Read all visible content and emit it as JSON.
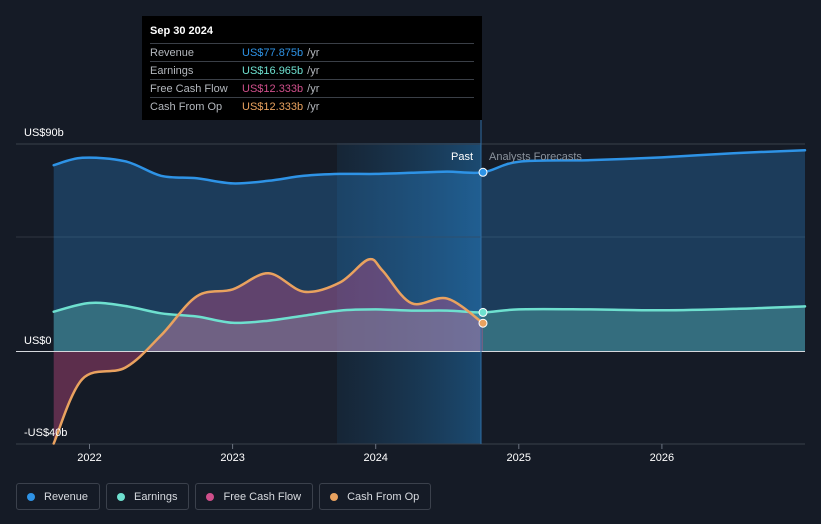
{
  "tooltip": {
    "date": "Sep 30 2024",
    "rows": [
      {
        "label": "Revenue",
        "value": "US$77.875b",
        "unit": "/yr",
        "color": "#2e93e6"
      },
      {
        "label": "Earnings",
        "value": "US$16.965b",
        "unit": "/yr",
        "color": "#6ee0cf"
      },
      {
        "label": "Free Cash Flow",
        "value": "US$12.333b",
        "unit": "/yr",
        "color": "#cf4f8b"
      },
      {
        "label": "Cash From Op",
        "value": "US$12.333b",
        "unit": "/yr",
        "color": "#e9a25f"
      }
    ]
  },
  "labels": {
    "past": "Past",
    "forecast": "Analysts Forecasts"
  },
  "legend": [
    {
      "label": "Revenue",
      "color": "#2e93e6"
    },
    {
      "label": "Earnings",
      "color": "#6ee0cf"
    },
    {
      "label": "Free Cash Flow",
      "color": "#cf4f8b"
    },
    {
      "label": "Cash From Op",
      "color": "#e9a25f"
    }
  ],
  "chart_data": {
    "type": "area",
    "x_tick_labels": [
      "2022",
      "2023",
      "2024",
      "2025",
      "2026"
    ],
    "y_tick_labels": [
      "US$90b",
      "US$0",
      "-US$40b"
    ],
    "ylim": [
      -40,
      90
    ],
    "xlim": [
      2021.71,
      2027.0
    ],
    "past_end": 2024.75,
    "shaded_start": 2023.75,
    "series": [
      {
        "name": "Revenue",
        "color": "#2e93e6",
        "x": [
          2021.75,
          2021.95,
          2022.25,
          2022.5,
          2022.75,
          2023.0,
          2023.25,
          2023.5,
          2023.75,
          2024.0,
          2024.25,
          2024.5,
          2024.75,
          2025.0,
          2025.5,
          2026.0,
          2026.5,
          2027.0
        ],
        "y": [
          81,
          84.2,
          82.7,
          76.4,
          75.3,
          73.1,
          74.2,
          76.4,
          77.2,
          77.2,
          77.7,
          78.2,
          77.9,
          82.5,
          83.2,
          84.4,
          86.2,
          87.5
        ]
      },
      {
        "name": "Earnings",
        "color": "#6ee0cf",
        "x": [
          2021.75,
          2022.0,
          2022.25,
          2022.5,
          2022.75,
          2023.0,
          2023.25,
          2023.5,
          2023.75,
          2024.0,
          2024.25,
          2024.5,
          2024.75,
          2025.0,
          2025.5,
          2026.0,
          2026.5,
          2027.0
        ],
        "y": [
          17.3,
          21.1,
          19.8,
          16.6,
          15.2,
          12.5,
          13.4,
          15.6,
          17.8,
          18.3,
          17.8,
          17.8,
          17.0,
          18.3,
          18.3,
          17.9,
          18.5,
          19.6
        ]
      },
      {
        "name": "Free Cash Flow",
        "color": "#cf4f8b",
        "x": [
          2021.75,
          2021.95,
          2022.25,
          2022.5,
          2022.75,
          2023.0,
          2023.25,
          2023.5,
          2023.75,
          2023.95,
          2024.05,
          2024.25,
          2024.5,
          2024.75
        ],
        "y": [
          -40,
          -12,
          -7,
          7,
          24,
          27,
          34,
          26,
          30,
          40,
          35,
          21,
          23,
          12.3
        ]
      },
      {
        "name": "Cash From Op",
        "color": "#e9a25f",
        "x": [
          2021.75,
          2021.95,
          2022.25,
          2022.5,
          2022.75,
          2023.0,
          2023.25,
          2023.5,
          2023.75,
          2023.95,
          2024.05,
          2024.25,
          2024.5,
          2024.75
        ],
        "y": [
          -40,
          -12,
          -7,
          7,
          24,
          27,
          34,
          26,
          30,
          40,
          35,
          21,
          23,
          12.3
        ]
      }
    ]
  }
}
